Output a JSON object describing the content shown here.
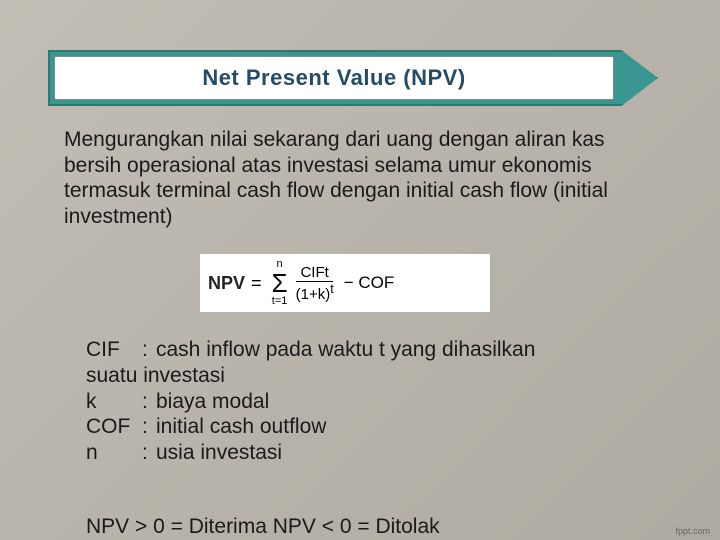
{
  "banner": {
    "title": "Net Present Value (NPV)",
    "bg_color": "#3a9690",
    "inner_bg": "#ffffff",
    "title_color": "#244c66",
    "title_fontsize": 22
  },
  "description": "Mengurangkan nilai sekarang dari uang dengan aliran kas bersih operasional atas investasi selama umur ekonomis termasuk terminal cash flow dengan initial cash flow (initial investment)",
  "formula": {
    "lhs": "NPV",
    "eq": "=",
    "sigma_top": "n",
    "sigma_bottom": "t=1",
    "frac_top": "CIFt",
    "frac_bot": "(1+k)",
    "frac_bot_exp": "t",
    "tail": "−  COF",
    "bg": "#ffffff"
  },
  "definitions": [
    {
      "key": "CIF",
      "val": "cash inflow pada waktu t yang dihasilkan suatu investasi",
      "wrap": true
    },
    {
      "key": "k",
      "val": "biaya modal"
    },
    {
      "key": "COF",
      "val": "initial cash outflow"
    },
    {
      "key": "n",
      "val": "usia investasi"
    }
  ],
  "bottom_cut": "NPV > 0 = Diterima      NPV < 0 = Ditolak",
  "footer": "fppt.com",
  "colors": {
    "page_bg_start": "#c2beb5",
    "page_bg_end": "#aeaaa1",
    "text": "#1a1a1a"
  }
}
